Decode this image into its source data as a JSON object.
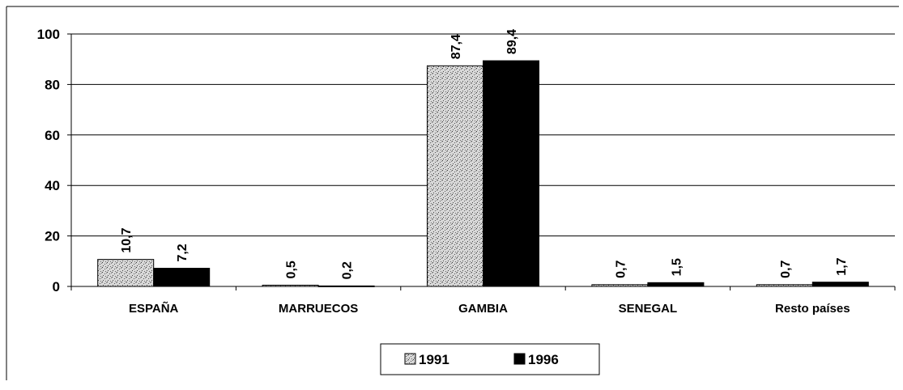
{
  "chart_data": {
    "type": "bar",
    "categories": [
      "ESPAÑA",
      "MARRUECOS",
      "GAMBIA",
      "SENEGAL",
      "Resto países"
    ],
    "series": [
      {
        "name": "1991",
        "color": "#a0a0a0",
        "values": [
          10.7,
          0.5,
          87.4,
          0.7,
          0.7
        ],
        "value_labels": [
          "10,7",
          "0,5",
          "87,4",
          "0,7",
          "0,7"
        ]
      },
      {
        "name": "1996",
        "color": "#000000",
        "values": [
          7.2,
          0.2,
          89.4,
          1.5,
          1.7
        ],
        "value_labels": [
          "7,2",
          "0,2",
          "89,4",
          "1,5",
          "1,7"
        ]
      }
    ],
    "ylim": [
      0,
      100
    ],
    "yticks": [
      0,
      20,
      40,
      60,
      80,
      100
    ],
    "grid": true,
    "legend": "bottom"
  }
}
